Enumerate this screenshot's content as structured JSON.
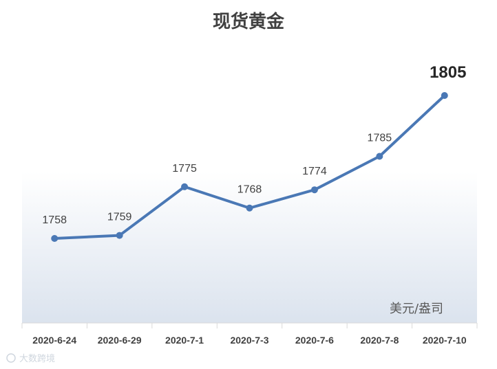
{
  "chart_data": {
    "type": "line",
    "title": "现货黄金",
    "unit_label": "美元/盎司",
    "categories": [
      "2020-6-24",
      "2020-6-29",
      "2020-7-1",
      "2020-7-3",
      "2020-7-6",
      "2020-7-8",
      "2020-7-10"
    ],
    "series": [
      {
        "values": [
          1758,
          1759,
          1775,
          1768,
          1774,
          1785,
          1805
        ]
      }
    ],
    "data_labels": [
      "1758",
      "1759",
      "1775",
      "1768",
      "1774",
      "1785",
      "1805"
    ],
    "highlight_last_label": true,
    "line_color": "#4a78b5",
    "background_gradient": [
      "#ffffff",
      "#dbe3ee"
    ],
    "grid": false,
    "legend": "none"
  },
  "watermark": "大数跨境"
}
